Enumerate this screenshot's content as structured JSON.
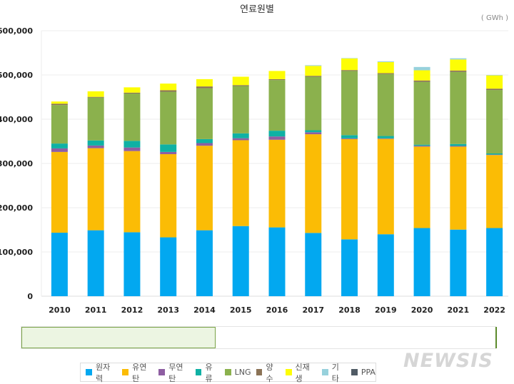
{
  "chart_data": {
    "type": "bar",
    "stacked": true,
    "title": "연료원별",
    "unit": "( GWh )",
    "categories": [
      "2010",
      "2011",
      "2012",
      "2013",
      "2014",
      "2015",
      "2016",
      "2017",
      "2018",
      "2019",
      "2020",
      "2021",
      "2022"
    ],
    "ylim": [
      0,
      600000
    ],
    "yticks": [
      "0",
      "100,000",
      "200,000",
      "300,000",
      "400,000",
      "500,000",
      "600,000"
    ],
    "ytick_values": [
      0,
      100000,
      200000,
      300000,
      400000,
      500000,
      600000
    ],
    "grid": true,
    "legend_position": "bottom",
    "series": [
      {
        "name": "원자력",
        "color": "#02a8f0",
        "values": [
          143500,
          149000,
          144500,
          133000,
          149000,
          158500,
          155500,
          143000,
          128500,
          140000,
          154000,
          150500,
          154000
        ]
      },
      {
        "name": "유연탄",
        "color": "#fbbc05",
        "values": [
          182500,
          185500,
          183500,
          188000,
          191000,
          194000,
          198000,
          223000,
          226500,
          215500,
          184000,
          187500,
          165000
        ]
      },
      {
        "name": "무연탄",
        "color": "#8e5ea2",
        "values": [
          8000,
          6000,
          8000,
          5000,
          6000,
          4500,
          7500,
          4500,
          1700,
          1200,
          2000,
          1600,
          1000
        ]
      },
      {
        "name": "유류",
        "color": "#0fb1a4",
        "values": [
          11000,
          11500,
          15000,
          17000,
          9000,
          11000,
          13000,
          4500,
          7300,
          5300,
          2500,
          4400,
          2600
        ]
      },
      {
        "name": "LNG",
        "color": "#8bb14d",
        "values": [
          87000,
          97000,
          107000,
          119000,
          115000,
          107000,
          114500,
          121000,
          145000,
          140000,
          142000,
          163000,
          143400
        ]
      },
      {
        "name": "양수",
        "color": "#8b7356",
        "values": [
          3000,
          1500,
          2000,
          3500,
          4000,
          2000,
          2000,
          2000,
          2000,
          2000,
          3000,
          3000,
          3000
        ]
      },
      {
        "name": "신재생",
        "color": "#fdfd05",
        "values": [
          5000,
          12500,
          12000,
          15000,
          16500,
          19000,
          18500,
          22500,
          26500,
          25000,
          23000,
          25000,
          30000
        ]
      },
      {
        "name": "기타",
        "color": "#97d1dc",
        "values": [
          0,
          0,
          0,
          0,
          0,
          0,
          0,
          1500,
          500,
          1700,
          7500,
          2600,
          1000
        ]
      },
      {
        "name": "PPA",
        "color": "#505b65",
        "values": [
          0,
          0,
          0,
          0,
          0,
          0,
          0,
          0,
          0,
          0,
          0,
          0,
          0
        ]
      }
    ]
  },
  "watermark": "NEWSIS"
}
